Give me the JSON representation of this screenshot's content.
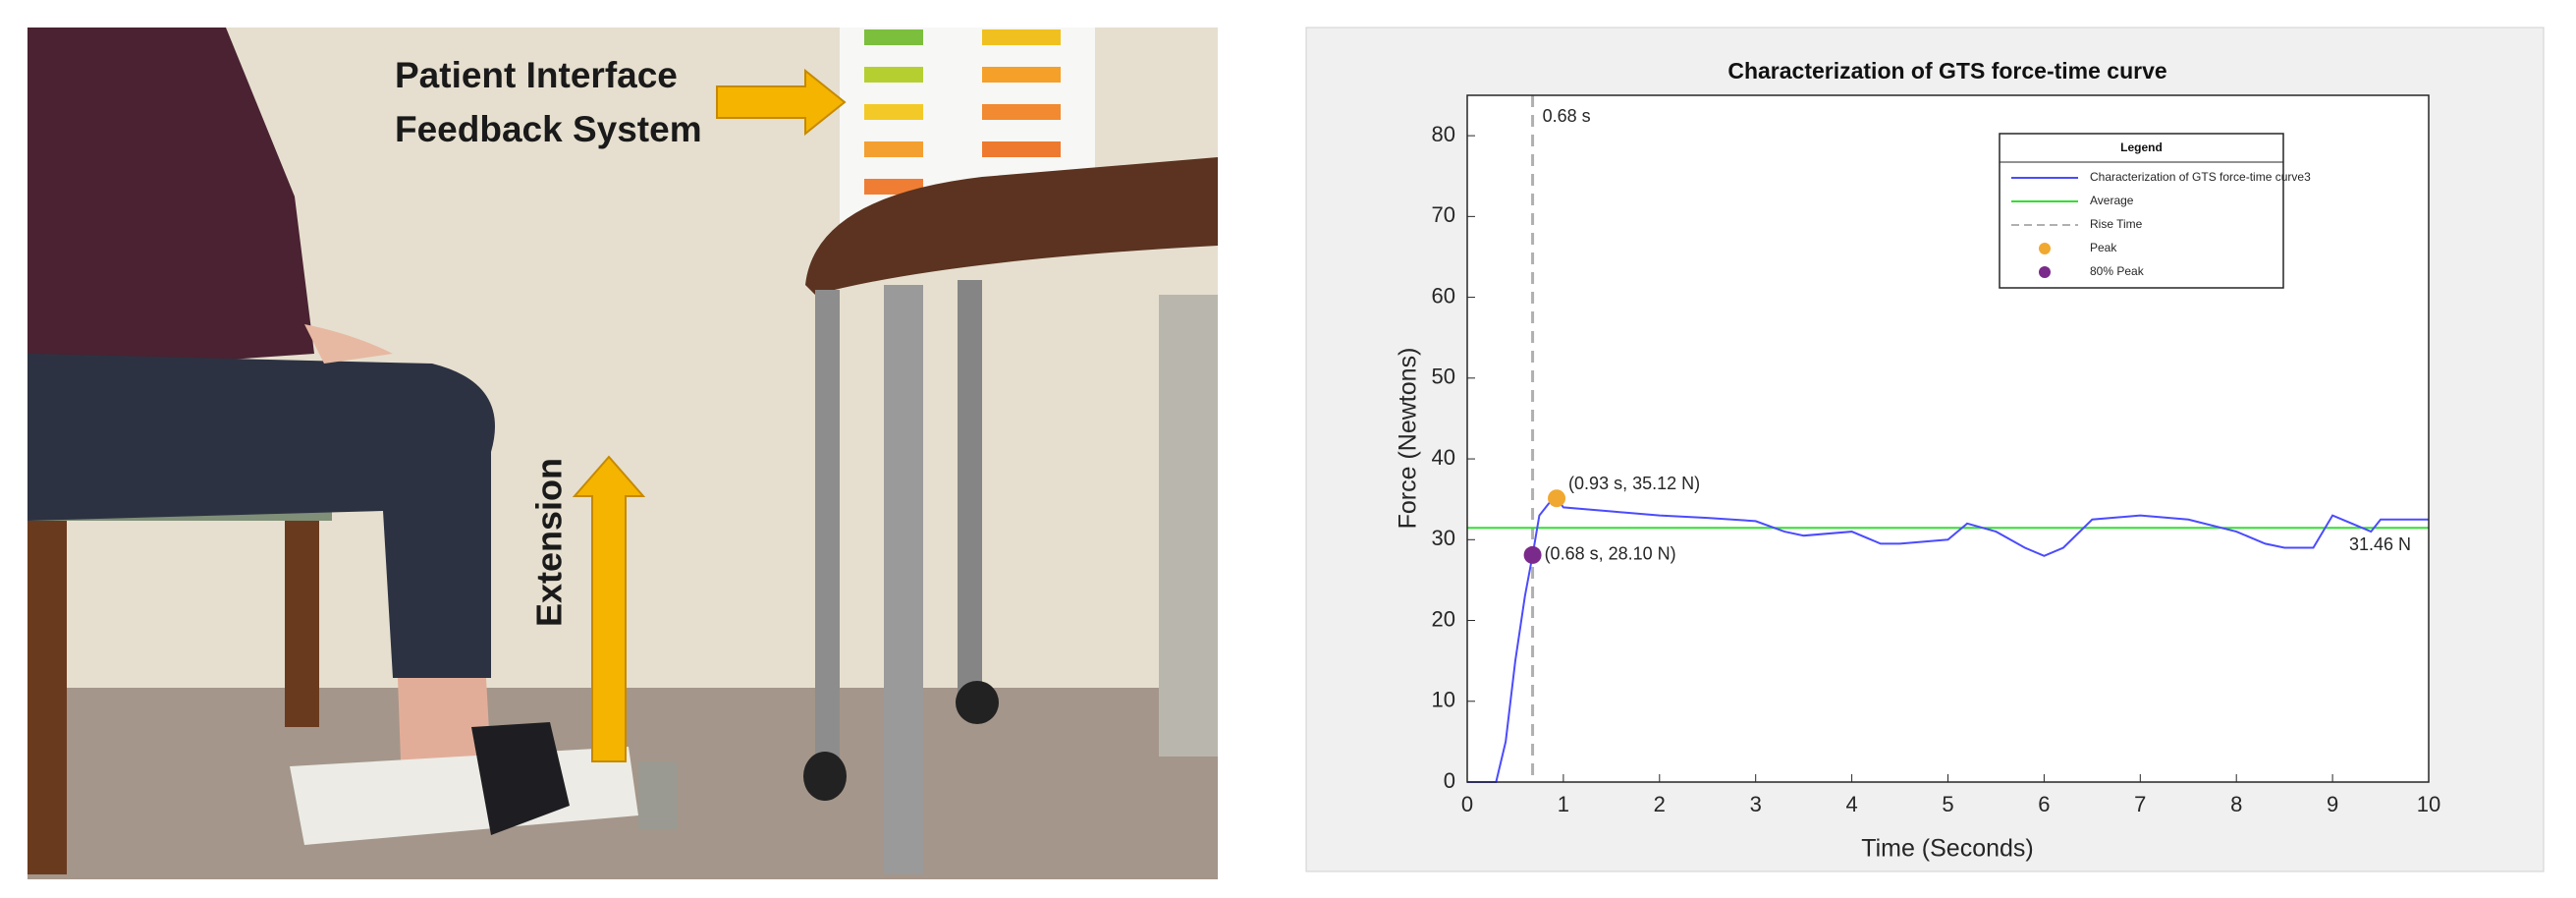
{
  "photo": {
    "callout": [
      "Patient Interface",
      "Feedback System"
    ],
    "arrow_label": "Extension"
  },
  "chart_data": {
    "type": "line",
    "title": "Characterization of GTS force-time curve",
    "xlabel": "Time (Seconds)",
    "ylabel": "Force (Newtons)",
    "xlim": [
      0,
      10
    ],
    "ylim": [
      0,
      85
    ],
    "xticks": [
      0,
      1,
      2,
      3,
      4,
      5,
      6,
      7,
      8,
      9,
      10
    ],
    "yticks": [
      0,
      10,
      20,
      30,
      40,
      50,
      60,
      70,
      80
    ],
    "legend_title": "Legend",
    "legend": "upper right",
    "x": [
      0,
      0.3,
      0.4,
      0.5,
      0.6,
      0.68,
      0.75,
      0.85,
      0.93,
      1.0,
      1.5,
      2,
      2.5,
      3,
      3.3,
      3.5,
      4,
      4.3,
      4.5,
      5,
      5.2,
      5.5,
      5.8,
      6,
      6.2,
      6.5,
      7,
      7.5,
      8,
      8.3,
      8.5,
      8.8,
      9,
      9.2,
      9.4,
      9.5,
      10
    ],
    "series": [
      {
        "name": "Characterization of GTS force-time curve3",
        "color": "#4b4bff",
        "values": [
          0,
          0,
          5,
          15,
          23,
          28.1,
          33,
          34.5,
          35.12,
          34,
          33.5,
          33,
          32.7,
          32.3,
          31,
          30.5,
          31,
          29.5,
          29.5,
          30,
          32,
          31,
          29,
          28,
          29,
          32.5,
          33,
          32.5,
          31,
          29.5,
          29,
          29,
          33,
          32,
          31,
          32.5,
          32.5
        ]
      }
    ],
    "average": {
      "name": "Average",
      "color": "#33dd33",
      "value": 31.46,
      "label": "31.46 N"
    },
    "rise_time": {
      "name": "Rise Time",
      "color": "#b0b0b0",
      "value": 0.68,
      "label": "0.68 s"
    },
    "peak": {
      "name": "Peak",
      "color": "#f0a830",
      "x": 0.93,
      "y": 35.12,
      "label": "(0.93 s, 35.12 N)"
    },
    "peak80": {
      "name": "80% Peak",
      "color": "#7a2a8a",
      "x": 0.68,
      "y": 28.1,
      "label": "(0.68 s, 28.10 N)"
    }
  }
}
